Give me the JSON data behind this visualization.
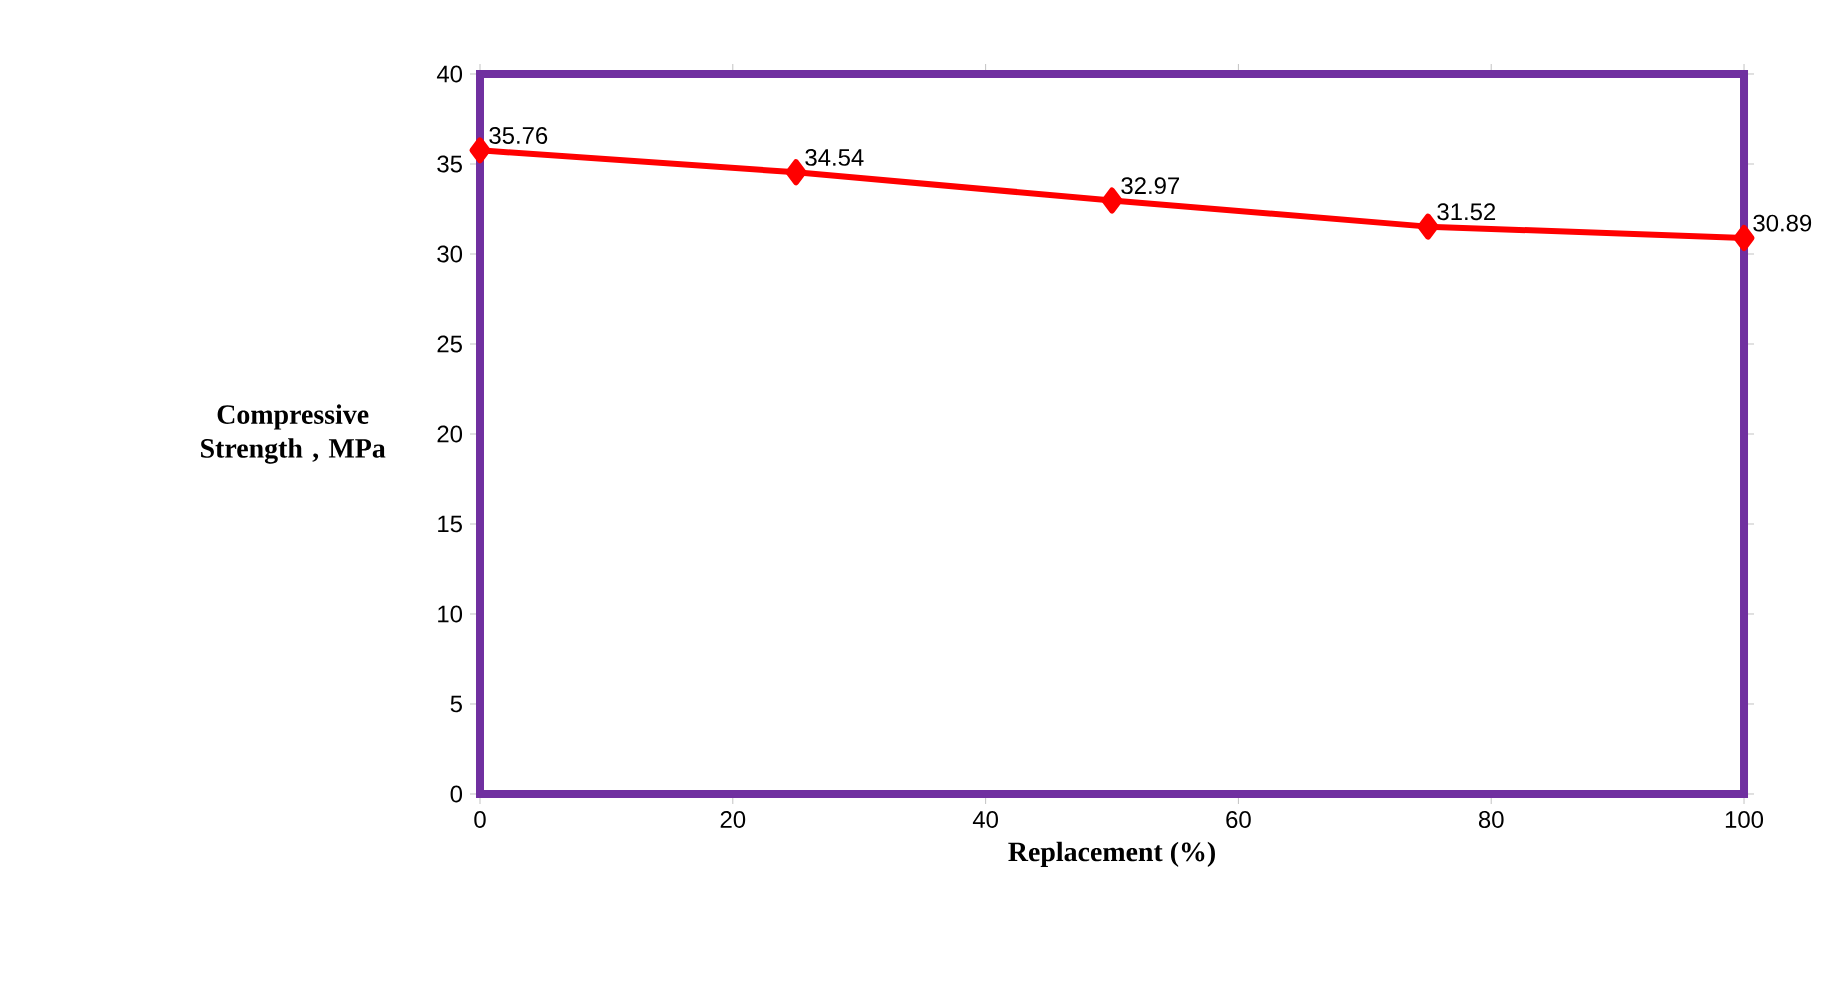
{
  "chart_data": {
    "type": "line",
    "xlabel": "Replacement (%)",
    "ylabel": "Compressive Strength , MPa",
    "x": [
      0,
      25,
      50,
      75,
      100
    ],
    "series": [
      {
        "color": "#ff0000",
        "values": [
          35.76,
          34.54,
          32.97,
          31.52,
          30.89
        ]
      }
    ],
    "xlim": [
      0,
      100
    ],
    "ylim": [
      0,
      40
    ],
    "xticks": [
      0,
      20,
      40,
      60,
      80,
      100
    ],
    "yticks": [
      0,
      5,
      10,
      15,
      20,
      25,
      30,
      35,
      40
    ],
    "grid": false,
    "marker": "diamond",
    "line_style": "solid",
    "data_labels": true
  }
}
